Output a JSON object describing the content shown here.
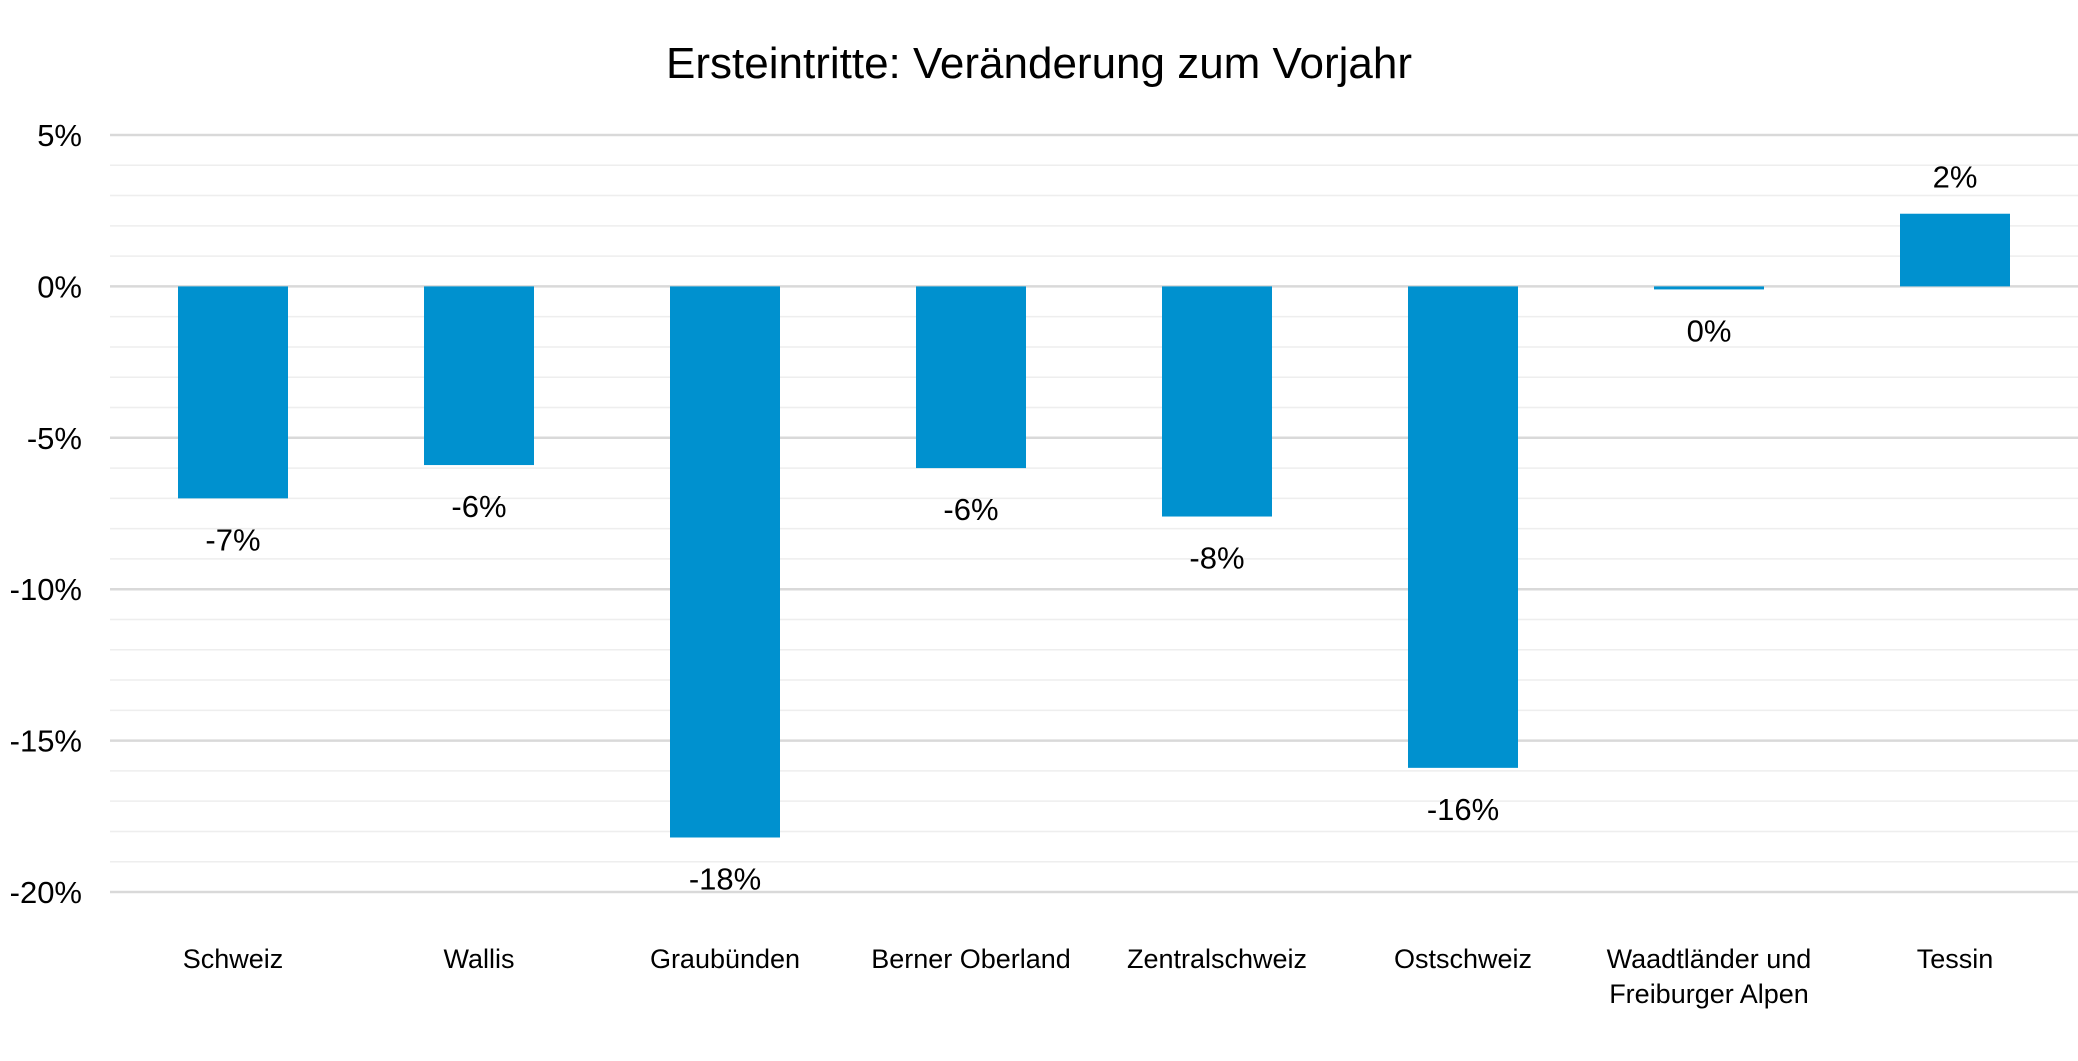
{
  "chart_data": {
    "type": "bar",
    "title": "Ersteintritte: Veränderung zum Vorjahr",
    "xlabel": "",
    "ylabel": "",
    "categories": [
      [
        "Schweiz"
      ],
      [
        "Wallis"
      ],
      [
        "Graubünden"
      ],
      [
        "Berner Oberland"
      ],
      [
        "Zentralschweiz"
      ],
      [
        "Ostschweiz"
      ],
      [
        "Waadtländer und",
        "Freiburger Alpen"
      ],
      [
        "Tessin"
      ]
    ],
    "values": [
      -7.0,
      -5.9,
      -18.2,
      -6.0,
      -7.6,
      -15.9,
      -0.1,
      2.4
    ],
    "data_labels": [
      "-7%",
      "-6%",
      "-18%",
      "-6%",
      "-8%",
      "-16%",
      "0%",
      "2%"
    ],
    "ylim": [
      -20,
      5
    ],
    "y_ticks": [
      5,
      0,
      -5,
      -10,
      -15,
      -20
    ],
    "y_tick_labels": [
      "5%",
      "0%",
      "-5%",
      "-10%",
      "-15%",
      "-20%"
    ],
    "minor_gridlines": true,
    "legend": "none",
    "colors": {
      "bar": "#0091CF",
      "major_grid": "#D9D9D9",
      "minor_grid": "#EEEEEE"
    }
  }
}
